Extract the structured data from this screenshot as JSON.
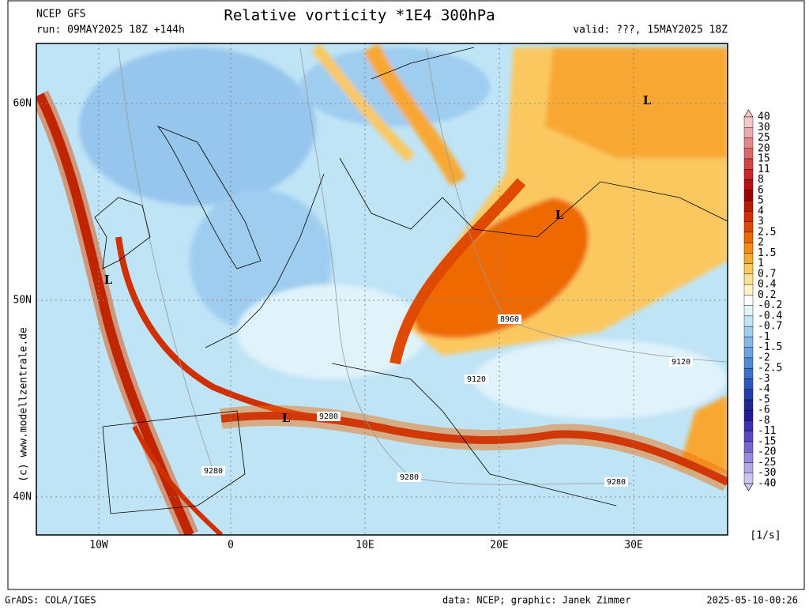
{
  "header": {
    "model": "NCEP GFS",
    "run": "run: 09MAY2025 18Z +144h",
    "title": "Relative vorticity *1E4 300hPa",
    "valid": "valid: ???, 15MAY2025 18Z"
  },
  "axes": {
    "lat_labels": [
      "60N",
      "50N",
      "40N"
    ],
    "lon_labels": [
      "10W",
      "0",
      "10E",
      "20E",
      "30E"
    ]
  },
  "credit": "(c) www.modellzentrale.de",
  "map": {
    "contour_labels": [
      "8960",
      "9120",
      "9120",
      "9280",
      "9280",
      "9280",
      "9280"
    ],
    "lows": [
      "L",
      "L",
      "L",
      "L"
    ]
  },
  "colorbar": {
    "labels": [
      "40",
      "30",
      "25",
      "20",
      "15",
      "11",
      "8",
      "6",
      "5",
      "4",
      "3",
      "2.5",
      "2",
      "1.5",
      "1",
      "0.7",
      "0.4",
      "0.2",
      "-0.2",
      "-0.4",
      "-0.7",
      "-1",
      "-1.5",
      "-2",
      "-2.5",
      "-3",
      "-4",
      "-5",
      "-6",
      "-8",
      "-11",
      "-15",
      "-20",
      "-25",
      "-30",
      "-40"
    ],
    "colors": [
      "#f4c8c8",
      "#eeaaaa",
      "#e68888",
      "#dd6666",
      "#d44444",
      "#c82828",
      "#b81010",
      "#a00000",
      "#b81c00",
      "#d03000",
      "#e04a00",
      "#ee6a00",
      "#f58a10",
      "#f8a830",
      "#fbc860",
      "#fde090",
      "#fff4c0",
      "#ffffff",
      "#e0f2fa",
      "#bfe4f6",
      "#9fcdf0",
      "#85b8ea",
      "#6ba2e2",
      "#528ad8",
      "#3c72cc",
      "#2a58bc",
      "#1e40a8",
      "#1a2890",
      "#201c9a",
      "#3a30b0",
      "#5848c4",
      "#7866d4",
      "#9888e0",
      "#b4a8ea",
      "#cdc4f2"
    ],
    "unit": "[1/s]"
  },
  "footer": {
    "left": "GrADS: COLA/IGES",
    "center": "data: NCEP; graphic: Janek Zimmer",
    "right": "2025-05-10-00:26"
  }
}
